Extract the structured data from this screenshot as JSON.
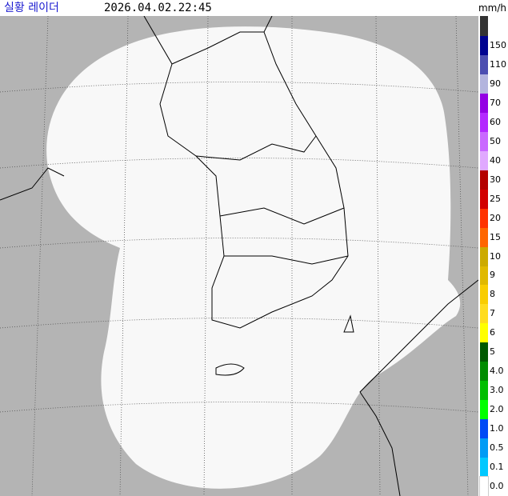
{
  "header": {
    "title": "실황 레이더",
    "time": "2026.04.02.22:45",
    "unit": "mm/h"
  },
  "legend": [
    {
      "label": "150",
      "color": "#000390"
    },
    {
      "label": "110",
      "color": "#4c4eb1"
    },
    {
      "label": "90",
      "color": "#b3b4de"
    },
    {
      "label": "70",
      "color": "#9300e4"
    },
    {
      "label": "60",
      "color": "#b329ff"
    },
    {
      "label": "50",
      "color": "#c969ff"
    },
    {
      "label": "40",
      "color": "#e0a9ff"
    },
    {
      "label": "30",
      "color": "#b40000"
    },
    {
      "label": "25",
      "color": "#d20000"
    },
    {
      "label": "20",
      "color": "#ff3200"
    },
    {
      "label": "15",
      "color": "#ff6600"
    },
    {
      "label": "10",
      "color": "#ccaa00"
    },
    {
      "label": "9",
      "color": "#e0b900"
    },
    {
      "label": "8",
      "color": "#f9cd00"
    },
    {
      "label": "7",
      "color": "#ffdc1f"
    },
    {
      "label": "6",
      "color": "#ffff00"
    },
    {
      "label": "5",
      "color": "#005a00"
    },
    {
      "label": "4.0",
      "color": "#008c00"
    },
    {
      "label": "3.0",
      "color": "#00be00"
    },
    {
      "label": "2.0",
      "color": "#00ff00"
    },
    {
      "label": "1.0",
      "color": "#004af5"
    },
    {
      "label": "0.5",
      "color": "#009bf5"
    },
    {
      "label": "0.1",
      "color": "#00c8ff"
    },
    {
      "label": "0.0",
      "color": "#ffffff"
    }
  ]
}
